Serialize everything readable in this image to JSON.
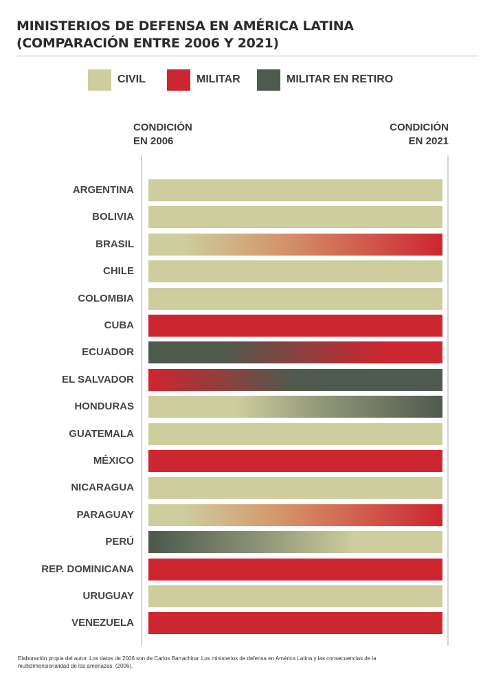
{
  "title_lines": [
    "MINISTERIOS DE DEFENSA EN AMÉRICA LATINA",
    "(COMPARACIÓN ENTRE 2006 Y 2021)"
  ],
  "legend": [
    {
      "label": "CIVIL",
      "key": "civil"
    },
    {
      "label": "MILITAR",
      "key": "militar"
    },
    {
      "label": "MILITAR EN RETIRO",
      "key": "retiro"
    }
  ],
  "colors": {
    "civil": "#cdcd9d",
    "militar": "#cc2630",
    "retiro": "#4e5a4d"
  },
  "columns": {
    "left": [
      "CONDICIÓN",
      "EN 2006"
    ],
    "right": [
      "CONDICIÓN",
      "EN 2021"
    ]
  },
  "chart_data": {
    "type": "table",
    "categories_legend": [
      "CIVIL",
      "MILITAR",
      "MILITAR EN RETIRO"
    ],
    "rows": [
      {
        "country": "ARGENTINA",
        "y2006": "civil",
        "y2021": "civil"
      },
      {
        "country": "BOLIVIA",
        "y2006": "civil",
        "y2021": "civil"
      },
      {
        "country": "BRASIL",
        "y2006": "civil",
        "y2021": "militar"
      },
      {
        "country": "CHILE",
        "y2006": "civil",
        "y2021": "civil"
      },
      {
        "country": "COLOMBIA",
        "y2006": "civil",
        "y2021": "civil"
      },
      {
        "country": "CUBA",
        "y2006": "militar",
        "y2021": "militar"
      },
      {
        "country": "ECUADOR",
        "y2006": "retiro",
        "y2021": "militar"
      },
      {
        "country": "EL SALVADOR",
        "y2006": "militar",
        "y2021": "retiro"
      },
      {
        "country": "HONDURAS",
        "y2006": "civil",
        "y2021": "retiro"
      },
      {
        "country": "GUATEMALA",
        "y2006": "civil",
        "y2021": "civil"
      },
      {
        "country": "MÉXICO",
        "y2006": "militar",
        "y2021": "militar"
      },
      {
        "country": "NICARAGUA",
        "y2006": "civil",
        "y2021": "civil"
      },
      {
        "country": "PARAGUAY",
        "y2006": "civil",
        "y2021": "militar"
      },
      {
        "country": "PERÚ",
        "y2006": "retiro",
        "y2021": "civil"
      },
      {
        "country": "REP. DOMINICANA",
        "y2006": "militar",
        "y2021": "militar"
      },
      {
        "country": "URUGUAY",
        "y2006": "civil",
        "y2021": "civil"
      },
      {
        "country": "VENEZUELA",
        "y2006": "militar",
        "y2021": "militar"
      }
    ]
  },
  "footnote": "Elaboración propia del autor. Los datos de 2006 son de Carlos Barrachina: Los ministerios de defensa en América Latina y las consecuencias de la multidimensionalidad de las amenazas. (2006)."
}
